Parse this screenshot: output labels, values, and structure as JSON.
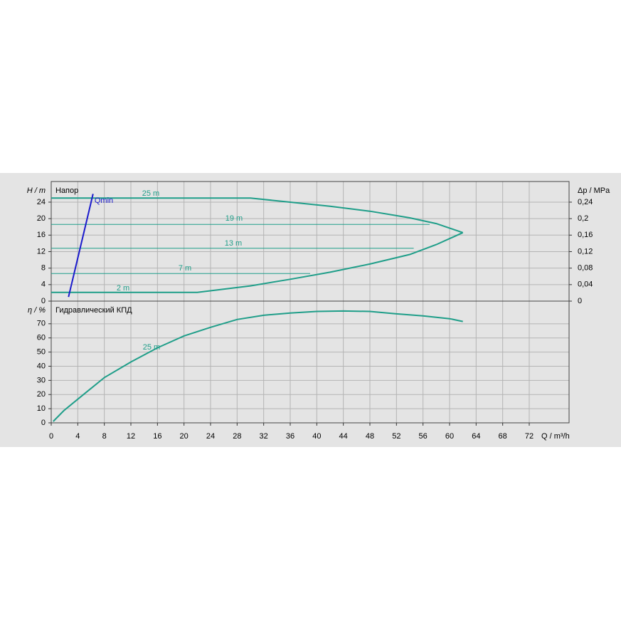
{
  "chart_data": [
    {
      "type": "line",
      "title": "Напор",
      "ylabel": "H / m",
      "y2label": "Δp / MPa",
      "xlim": [
        0,
        78
      ],
      "ylim": [
        0,
        29
      ],
      "yticks": [
        0,
        4,
        8,
        12,
        16,
        20,
        24
      ],
      "y2lim": [
        0,
        0.29
      ],
      "y2ticks": [
        0,
        {
          "value": 0.04,
          "label": "0,04"
        },
        {
          "value": 0.08,
          "label": "0,08"
        },
        {
          "value": 0.12,
          "label": "0,12"
        },
        {
          "value": 0.16,
          "label": "0,16"
        },
        {
          "value": 0.2,
          "label": "0,2"
        },
        {
          "value": 0.24,
          "label": "0,24"
        }
      ],
      "grid": true,
      "series": [
        {
          "name": "25 m",
          "color": "#1f9e89",
          "x": [
            0,
            30,
            36,
            42,
            48,
            54,
            58,
            62
          ],
          "values": [
            25,
            25,
            24,
            23,
            21.8,
            20.2,
            18.8,
            16.6
          ]
        },
        {
          "name": "19 m",
          "color": "#1f9e89",
          "x": [
            0,
            57
          ],
          "values": [
            18.6,
            18.6
          ]
        },
        {
          "name": "13 m",
          "color": "#1f9e89",
          "x": [
            0,
            54.6
          ],
          "values": [
            12.8,
            12.8
          ]
        },
        {
          "name": "7 m",
          "color": "#1f9e89",
          "x": [
            0,
            39
          ],
          "values": [
            6.7,
            6.7
          ]
        },
        {
          "name": "2 m",
          "color": "#1f9e89",
          "x": [
            0,
            22,
            30,
            36,
            42,
            48,
            54,
            58,
            62
          ],
          "values": [
            2.1,
            2.1,
            3.7,
            5.3,
            7,
            9,
            11.3,
            13.7,
            16.6
          ]
        },
        {
          "name": "Qmin",
          "color": "#1a1acc",
          "x": [
            2.6,
            6.3
          ],
          "values": [
            1,
            26
          ]
        }
      ]
    },
    {
      "type": "line",
      "title": "Гидравлический КПД",
      "ylabel": "η / %",
      "xlabel": "Q / m³/h",
      "xlim": [
        0,
        78
      ],
      "xticks": [
        0,
        4,
        8,
        12,
        16,
        20,
        24,
        28,
        32,
        36,
        40,
        44,
        48,
        52,
        56,
        60,
        64,
        68,
        72
      ],
      "ylim": [
        0,
        86
      ],
      "yticks": [
        0,
        10,
        20,
        30,
        40,
        50,
        60,
        70
      ],
      "grid": true,
      "series": [
        {
          "name": "25 m",
          "color": "#1f9e89",
          "x": [
            0.3,
            1.9,
            4,
            8,
            12,
            16,
            20,
            24,
            28,
            32,
            36,
            40,
            44,
            48,
            52,
            56,
            60,
            62
          ],
          "values": [
            1,
            8.6,
            16.7,
            32,
            43,
            53,
            61.4,
            67.5,
            73,
            76,
            77.6,
            78.7,
            79,
            78.7,
            77,
            75.6,
            73.6,
            71.6
          ]
        }
      ]
    }
  ]
}
